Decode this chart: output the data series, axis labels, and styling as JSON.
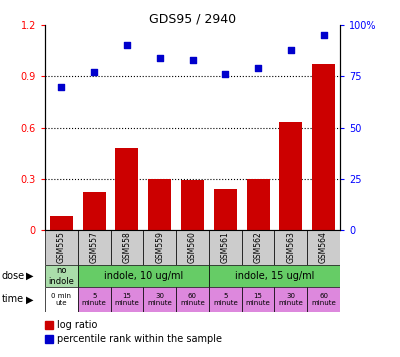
{
  "title": "GDS95 / 2940",
  "samples": [
    "GSM555",
    "GSM557",
    "GSM558",
    "GSM559",
    "GSM560",
    "GSM561",
    "GSM562",
    "GSM563",
    "GSM564"
  ],
  "log_ratio": [
    0.08,
    0.22,
    0.48,
    0.3,
    0.29,
    0.24,
    0.3,
    0.63,
    0.97
  ],
  "percentile": [
    70,
    77,
    90,
    84,
    83,
    76,
    79,
    88,
    95
  ],
  "bar_color": "#cc0000",
  "dot_color": "#0000cc",
  "left_ylim": [
    0,
    1.2
  ],
  "right_ylim": [
    0,
    100
  ],
  "left_yticks": [
    0,
    0.3,
    0.6,
    0.9,
    1.2
  ],
  "right_yticks": [
    0,
    25,
    50,
    75,
    100
  ],
  "left_yticklabels": [
    "0",
    "0.3",
    "0.6",
    "0.9",
    "1.2"
  ],
  "right_yticklabels": [
    "0",
    "25",
    "50",
    "75",
    "100%"
  ],
  "dose_no_indole_color": "#aaddaa",
  "dose_10_color": "#66cc66",
  "dose_15_color": "#66cc66",
  "time_0_color": "#ffffff",
  "time_color": "#dd88dd",
  "sample_bg": "#cccccc",
  "bg_color": "#ffffff"
}
